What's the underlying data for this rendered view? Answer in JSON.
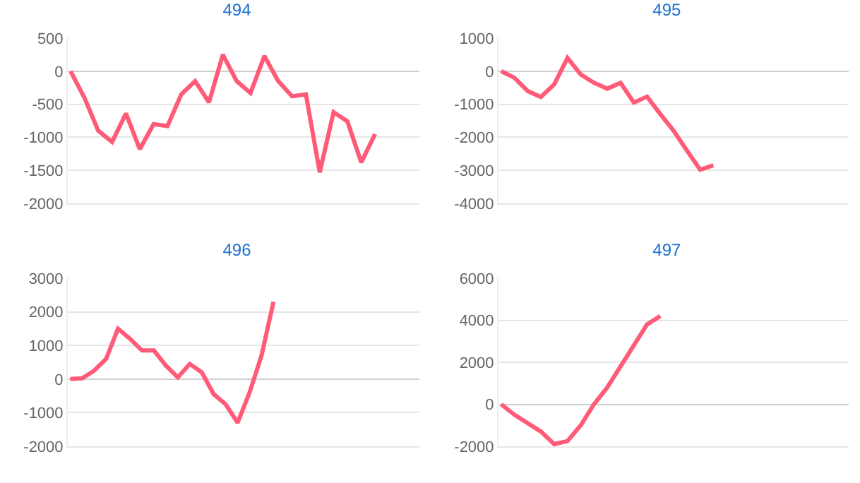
{
  "chart_data": [
    {
      "type": "line",
      "title": "494",
      "categories": [
        null,
        null,
        null,
        null,
        null,
        null,
        null,
        null,
        null,
        null,
        null,
        null,
        null,
        null,
        null,
        null,
        null,
        null,
        null,
        null,
        null,
        null,
        null,
        null,
        null,
        null
      ],
      "series": [
        {
          "color": "#ff5a78",
          "values": [
            0,
            -400,
            -900,
            -1070,
            -640,
            -1180,
            -800,
            -830,
            -350,
            -150,
            -470,
            250,
            -150,
            -330,
            230,
            -150,
            -380,
            -350,
            -1530,
            -620,
            -760,
            -1380,
            -950,
            null,
            null,
            null
          ]
        }
      ],
      "ylim": [
        -2000,
        500
      ],
      "yticks": [
        -2000,
        -1500,
        -1000,
        -500,
        0,
        500
      ],
      "grid": "y",
      "tick_labels": "y",
      "marker": "none",
      "line_style": "solid"
    },
    {
      "type": "line",
      "title": "495",
      "categories": [
        null,
        null,
        null,
        null,
        null,
        null,
        null,
        null,
        null,
        null,
        null,
        null,
        null,
        null,
        null,
        null,
        null,
        null,
        null,
        null,
        null,
        null,
        null,
        null,
        null,
        null,
        null
      ],
      "series": [
        {
          "color": "#ff5a78",
          "values": [
            0,
            -200,
            -600,
            -780,
            -400,
            400,
            -100,
            -350,
            -530,
            -350,
            -950,
            -770,
            -1300,
            -1800,
            -2400,
            -2980,
            -2850,
            null,
            null,
            null,
            null,
            null,
            null,
            null,
            null,
            null,
            null
          ]
        }
      ],
      "ylim": [
        -4000,
        1000
      ],
      "yticks": [
        -4000,
        -3000,
        -2000,
        -1000,
        0,
        1000
      ],
      "grid": "y",
      "tick_labels": "y",
      "marker": "none",
      "line_style": "solid"
    },
    {
      "type": "line",
      "title": "496",
      "categories": [
        null,
        null,
        null,
        null,
        null,
        null,
        null,
        null,
        null,
        null,
        null,
        null,
        null,
        null,
        null,
        null,
        null,
        null,
        null,
        null,
        null,
        null,
        null,
        null,
        null,
        null,
        null,
        null,
        null,
        null
      ],
      "series": [
        {
          "color": "#ff5a78",
          "values": [
            0,
            20,
            250,
            600,
            1500,
            1200,
            850,
            850,
            400,
            50,
            450,
            200,
            -450,
            -750,
            -1300,
            -400,
            700,
            2300,
            null,
            null,
            null,
            null,
            null,
            null,
            null,
            null,
            null,
            null,
            null,
            null
          ]
        }
      ],
      "ylim": [
        -2000,
        3000
      ],
      "yticks": [
        -2000,
        -1000,
        0,
        1000,
        2000,
        3000
      ],
      "grid": "y",
      "tick_labels": "y",
      "marker": "none",
      "line_style": "solid"
    },
    {
      "type": "line",
      "title": "497",
      "categories": [
        null,
        null,
        null,
        null,
        null,
        null,
        null,
        null,
        null,
        null,
        null,
        null,
        null,
        null,
        null,
        null,
        null,
        null,
        null,
        null,
        null,
        null,
        null,
        null,
        null,
        null,
        null
      ],
      "series": [
        {
          "color": "#ff5a78",
          "values": [
            0,
            -500,
            -900,
            -1300,
            -1900,
            -1750,
            -1000,
            0,
            800,
            1800,
            2800,
            3800,
            4200,
            null,
            null,
            null,
            null,
            null,
            null,
            null,
            null,
            null,
            null,
            null,
            null,
            null,
            null
          ]
        }
      ],
      "ylim": [
        -2000,
        6000
      ],
      "yticks": [
        -2000,
        0,
        2000,
        4000,
        6000
      ],
      "grid": "y",
      "tick_labels": "y",
      "marker": "none",
      "line_style": "solid"
    }
  ]
}
